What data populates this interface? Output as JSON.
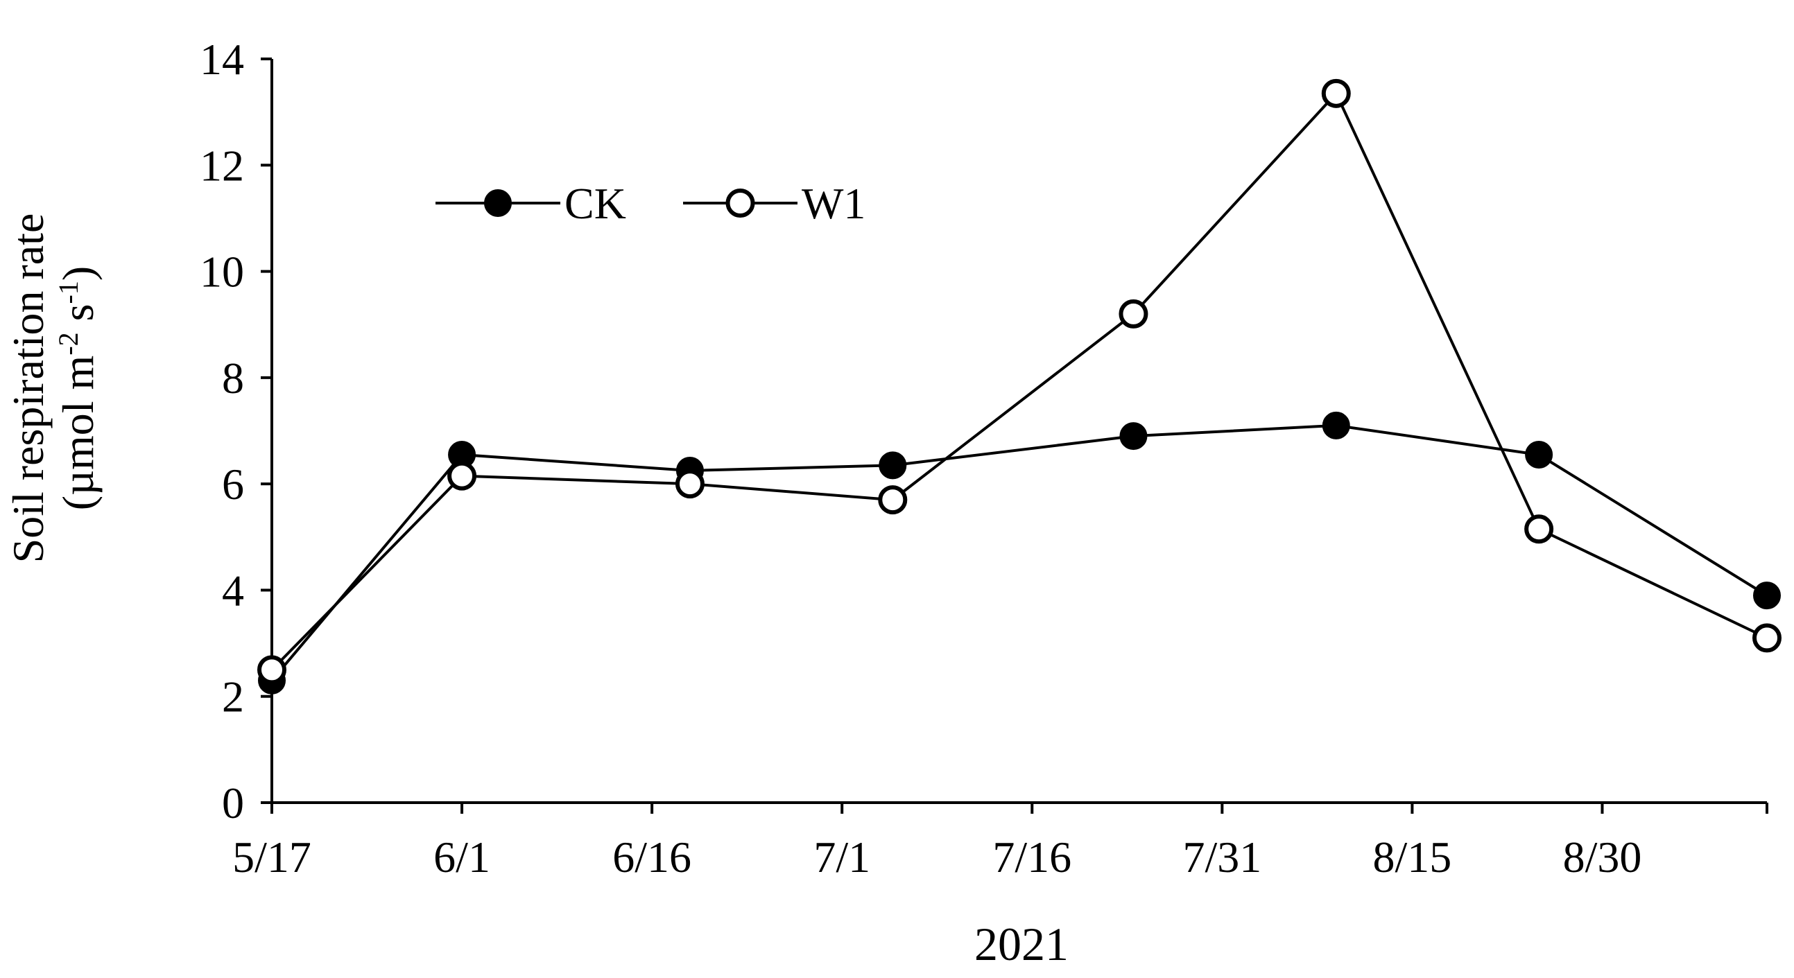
{
  "chart_data": {
    "type": "line",
    "title": "",
    "xlabel": "2021",
    "ylabel_line1": "Soil respiration rate",
    "ylabel_line2_prefix": "(µmol m",
    "ylabel_line2_sup1": "-2",
    "ylabel_line2_mid": " s",
    "ylabel_line2_sup2": "-1",
    "ylabel_line2_suffix": ")",
    "x_ticks": [
      {
        "label": "5/17",
        "date": "2021-05-17"
      },
      {
        "label": "6/1",
        "date": "2021-06-01"
      },
      {
        "label": "6/16",
        "date": "2021-06-16"
      },
      {
        "label": "7/1",
        "date": "2021-07-01"
      },
      {
        "label": "7/16",
        "date": "2021-07-16"
      },
      {
        "label": "7/31",
        "date": "2021-07-31"
      },
      {
        "label": "8/15",
        "date": "2021-08-15"
      },
      {
        "label": "8/30",
        "date": "2021-08-30"
      }
    ],
    "xlim": [
      "2021-05-17",
      "2021-09-12"
    ],
    "ylim": [
      0,
      14
    ],
    "y_ticks": [
      0,
      2,
      4,
      6,
      8,
      10,
      12,
      14
    ],
    "grid": false,
    "legend_position": "top-left",
    "series": [
      {
        "name": "CK",
        "marker": "filled-circle",
        "color": "#000000",
        "points": [
          {
            "x": "2021-05-17",
            "y": 2.3
          },
          {
            "x": "2021-06-01",
            "y": 6.55
          },
          {
            "x": "2021-06-19",
            "y": 6.25
          },
          {
            "x": "2021-07-05",
            "y": 6.35
          },
          {
            "x": "2021-07-24",
            "y": 6.9
          },
          {
            "x": "2021-08-09",
            "y": 7.1
          },
          {
            "x": "2021-08-25",
            "y": 6.55
          },
          {
            "x": "2021-09-12",
            "y": 3.9
          }
        ]
      },
      {
        "name": "W1",
        "marker": "open-circle",
        "color": "#000000",
        "points": [
          {
            "x": "2021-05-17",
            "y": 2.5
          },
          {
            "x": "2021-06-01",
            "y": 6.15
          },
          {
            "x": "2021-06-19",
            "y": 6.0
          },
          {
            "x": "2021-07-05",
            "y": 5.7
          },
          {
            "x": "2021-07-24",
            "y": 9.2
          },
          {
            "x": "2021-08-09",
            "y": 13.35
          },
          {
            "x": "2021-08-25",
            "y": 5.15
          },
          {
            "x": "2021-09-12",
            "y": 3.1
          }
        ]
      }
    ]
  }
}
